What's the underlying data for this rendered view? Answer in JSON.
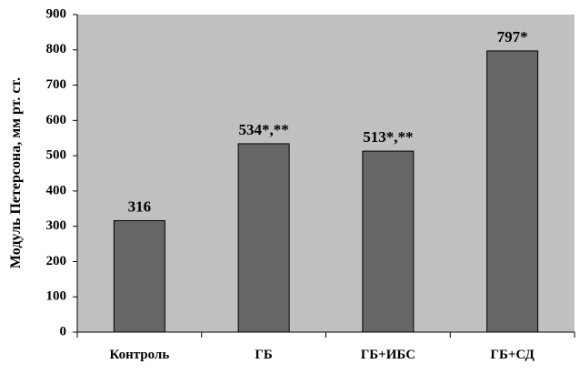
{
  "chart_data": {
    "type": "bar",
    "y_label": "Модуль Петерсона, мм рт. ст.",
    "categories": [
      "Контроль",
      "ГБ",
      "ГБ+ИБС",
      "ГБ+СД"
    ],
    "values": [
      316,
      534,
      513,
      797
    ],
    "value_labels": [
      "316",
      "534*,**",
      "513*,**",
      "797*"
    ],
    "color": "#666666",
    "background": "#c0c0c0",
    "ylim": [
      0,
      900
    ],
    "yticks": [
      0,
      100,
      200,
      300,
      400,
      500,
      600,
      700,
      800,
      900
    ],
    "grid": false
  }
}
